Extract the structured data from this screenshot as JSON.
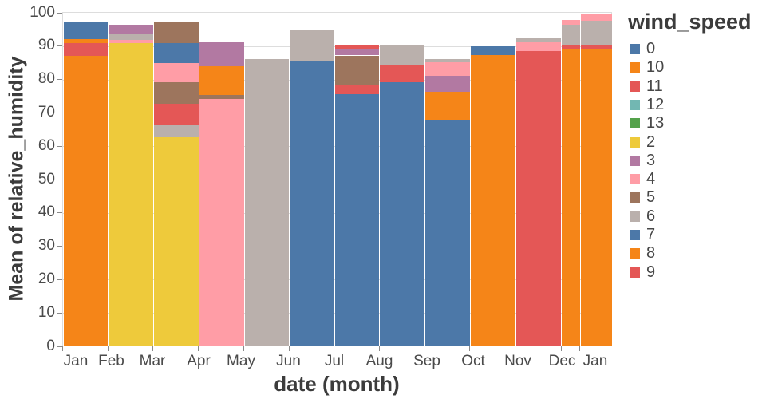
{
  "figure": {
    "y_axis_title": "Mean of relative_humidity",
    "x_axis_title": "date (month)",
    "legend_title": "wind_speed"
  },
  "chart_data": {
    "type": "bar",
    "stacked": true,
    "title": "",
    "xlabel": "date (month)",
    "ylabel": "Mean of relative_humidity",
    "ylim": [
      0,
      100
    ],
    "y_ticks": [
      0,
      10,
      20,
      30,
      40,
      50,
      60,
      70,
      80,
      90,
      100
    ],
    "grid": true,
    "legend_position": "right",
    "legend_title": "wind_speed",
    "legend_entries": [
      "0",
      "10",
      "11",
      "12",
      "13",
      "2",
      "3",
      "4",
      "5",
      "6",
      "7",
      "8",
      "9"
    ],
    "palette": {
      "0": "#4c78a8",
      "10": "#f58518",
      "11": "#e45756",
      "12": "#72b7b2",
      "13": "#54a24b",
      "2": "#eeca3b",
      "3": "#b279a2",
      "4": "#ff9da6",
      "5": "#9d755d",
      "6": "#bab0ac",
      "7": "#4c78a8",
      "8": "#f58518",
      "9": "#e45756"
    },
    "categories": [
      "Jan",
      "Feb",
      "Mar",
      "Apr",
      "May",
      "Jun",
      "Jul",
      "Aug",
      "Sep",
      "Oct",
      "Nov",
      "Dec",
      "Jan"
    ],
    "months": [
      {
        "month": "Jan",
        "segments": [
          {
            "wind_speed": "8",
            "from": 0,
            "to": 87.2
          },
          {
            "wind_speed": "11",
            "from": 87.2,
            "to": 90.8
          },
          {
            "wind_speed": "10",
            "from": 90.8,
            "to": 92.1
          },
          {
            "wind_speed": "0",
            "from": 92.1,
            "to": 97.4
          }
        ]
      },
      {
        "month": "Feb",
        "segments": [
          {
            "wind_speed": "2",
            "from": 0,
            "to": 91.0
          },
          {
            "wind_speed": "4",
            "from": 91.0,
            "to": 91.8
          },
          {
            "wind_speed": "6",
            "from": 91.8,
            "to": 93.8
          },
          {
            "wind_speed": "3",
            "from": 93.8,
            "to": 96.4
          }
        ]
      },
      {
        "month": "Mar",
        "segments": [
          {
            "wind_speed": "2",
            "from": 0,
            "to": 62.6
          },
          {
            "wind_speed": "6",
            "from": 62.6,
            "to": 66.3
          },
          {
            "wind_speed": "11",
            "from": 66.3,
            "to": 72.7
          },
          {
            "wind_speed": "5",
            "from": 72.7,
            "to": 79.3
          },
          {
            "wind_speed": "4",
            "from": 79.3,
            "to": 85.0
          },
          {
            "wind_speed": "7",
            "from": 85.0,
            "to": 91.0
          },
          {
            "wind_speed": "5",
            "from": 91.0,
            "to": 97.3
          }
        ]
      },
      {
        "month": "Apr",
        "segments": [
          {
            "wind_speed": "4",
            "from": 0,
            "to": 74.2
          },
          {
            "wind_speed": "5",
            "from": 74.2,
            "to": 75.4
          },
          {
            "wind_speed": "8",
            "from": 75.4,
            "to": 84.0
          },
          {
            "wind_speed": "3",
            "from": 84.0,
            "to": 91.2
          }
        ]
      },
      {
        "month": "May",
        "segments": [
          {
            "wind_speed": "6",
            "from": 0,
            "to": 86.2
          }
        ]
      },
      {
        "month": "Jun",
        "segments": [
          {
            "wind_speed": "7",
            "from": 0,
            "to": 85.3
          },
          {
            "wind_speed": "6",
            "from": 85.3,
            "to": 94.9
          }
        ]
      },
      {
        "month": "Jul",
        "segments": [
          {
            "wind_speed": "7",
            "from": 0,
            "to": 75.7
          },
          {
            "wind_speed": "9",
            "from": 75.7,
            "to": 78.4
          },
          {
            "wind_speed": "5",
            "from": 78.4,
            "to": 87.2
          },
          {
            "wind_speed": "3",
            "from": 87.2,
            "to": 89.3
          },
          {
            "wind_speed": "11",
            "from": 89.3,
            "to": 90.3
          }
        ]
      },
      {
        "month": "Aug",
        "segments": [
          {
            "wind_speed": "7",
            "from": 0,
            "to": 79.1
          },
          {
            "wind_speed": "11",
            "from": 79.1,
            "to": 84.3
          },
          {
            "wind_speed": "6",
            "from": 84.3,
            "to": 90.3
          }
        ]
      },
      {
        "month": "Sep",
        "segments": [
          {
            "wind_speed": "7",
            "from": 0,
            "to": 68.0
          },
          {
            "wind_speed": "8",
            "from": 68.0,
            "to": 76.3
          },
          {
            "wind_speed": "3",
            "from": 76.3,
            "to": 81.0
          },
          {
            "wind_speed": "4",
            "from": 81.0,
            "to": 85.2
          },
          {
            "wind_speed": "6",
            "from": 85.2,
            "to": 86.2
          }
        ]
      },
      {
        "month": "Oct",
        "segments": [
          {
            "wind_speed": "8",
            "from": 0,
            "to": 87.3
          },
          {
            "wind_speed": "0",
            "from": 87.3,
            "to": 90.0
          }
        ]
      },
      {
        "month": "Nov",
        "segments": [
          {
            "wind_speed": "9",
            "from": 0,
            "to": 88.6
          },
          {
            "wind_speed": "4",
            "from": 88.6,
            "to": 91.2
          },
          {
            "wind_speed": "6",
            "from": 91.2,
            "to": 92.4
          }
        ]
      },
      {
        "month": "Dec",
        "segments": [
          {
            "wind_speed": "8",
            "from": 0,
            "to": 89.0
          },
          {
            "wind_speed": "11",
            "from": 89.0,
            "to": 90.2
          },
          {
            "wind_speed": "6",
            "from": 90.2,
            "to": 96.4
          },
          {
            "wind_speed": "4",
            "from": 96.4,
            "to": 97.9
          }
        ]
      },
      {
        "month": "Jan",
        "segments": [
          {
            "wind_speed": "8",
            "from": 0,
            "to": 89.3
          },
          {
            "wind_speed": "11",
            "from": 89.3,
            "to": 90.5
          },
          {
            "wind_speed": "6",
            "from": 90.5,
            "to": 97.7
          },
          {
            "wind_speed": "4",
            "from": 97.7,
            "to": 99.5
          }
        ]
      }
    ]
  }
}
